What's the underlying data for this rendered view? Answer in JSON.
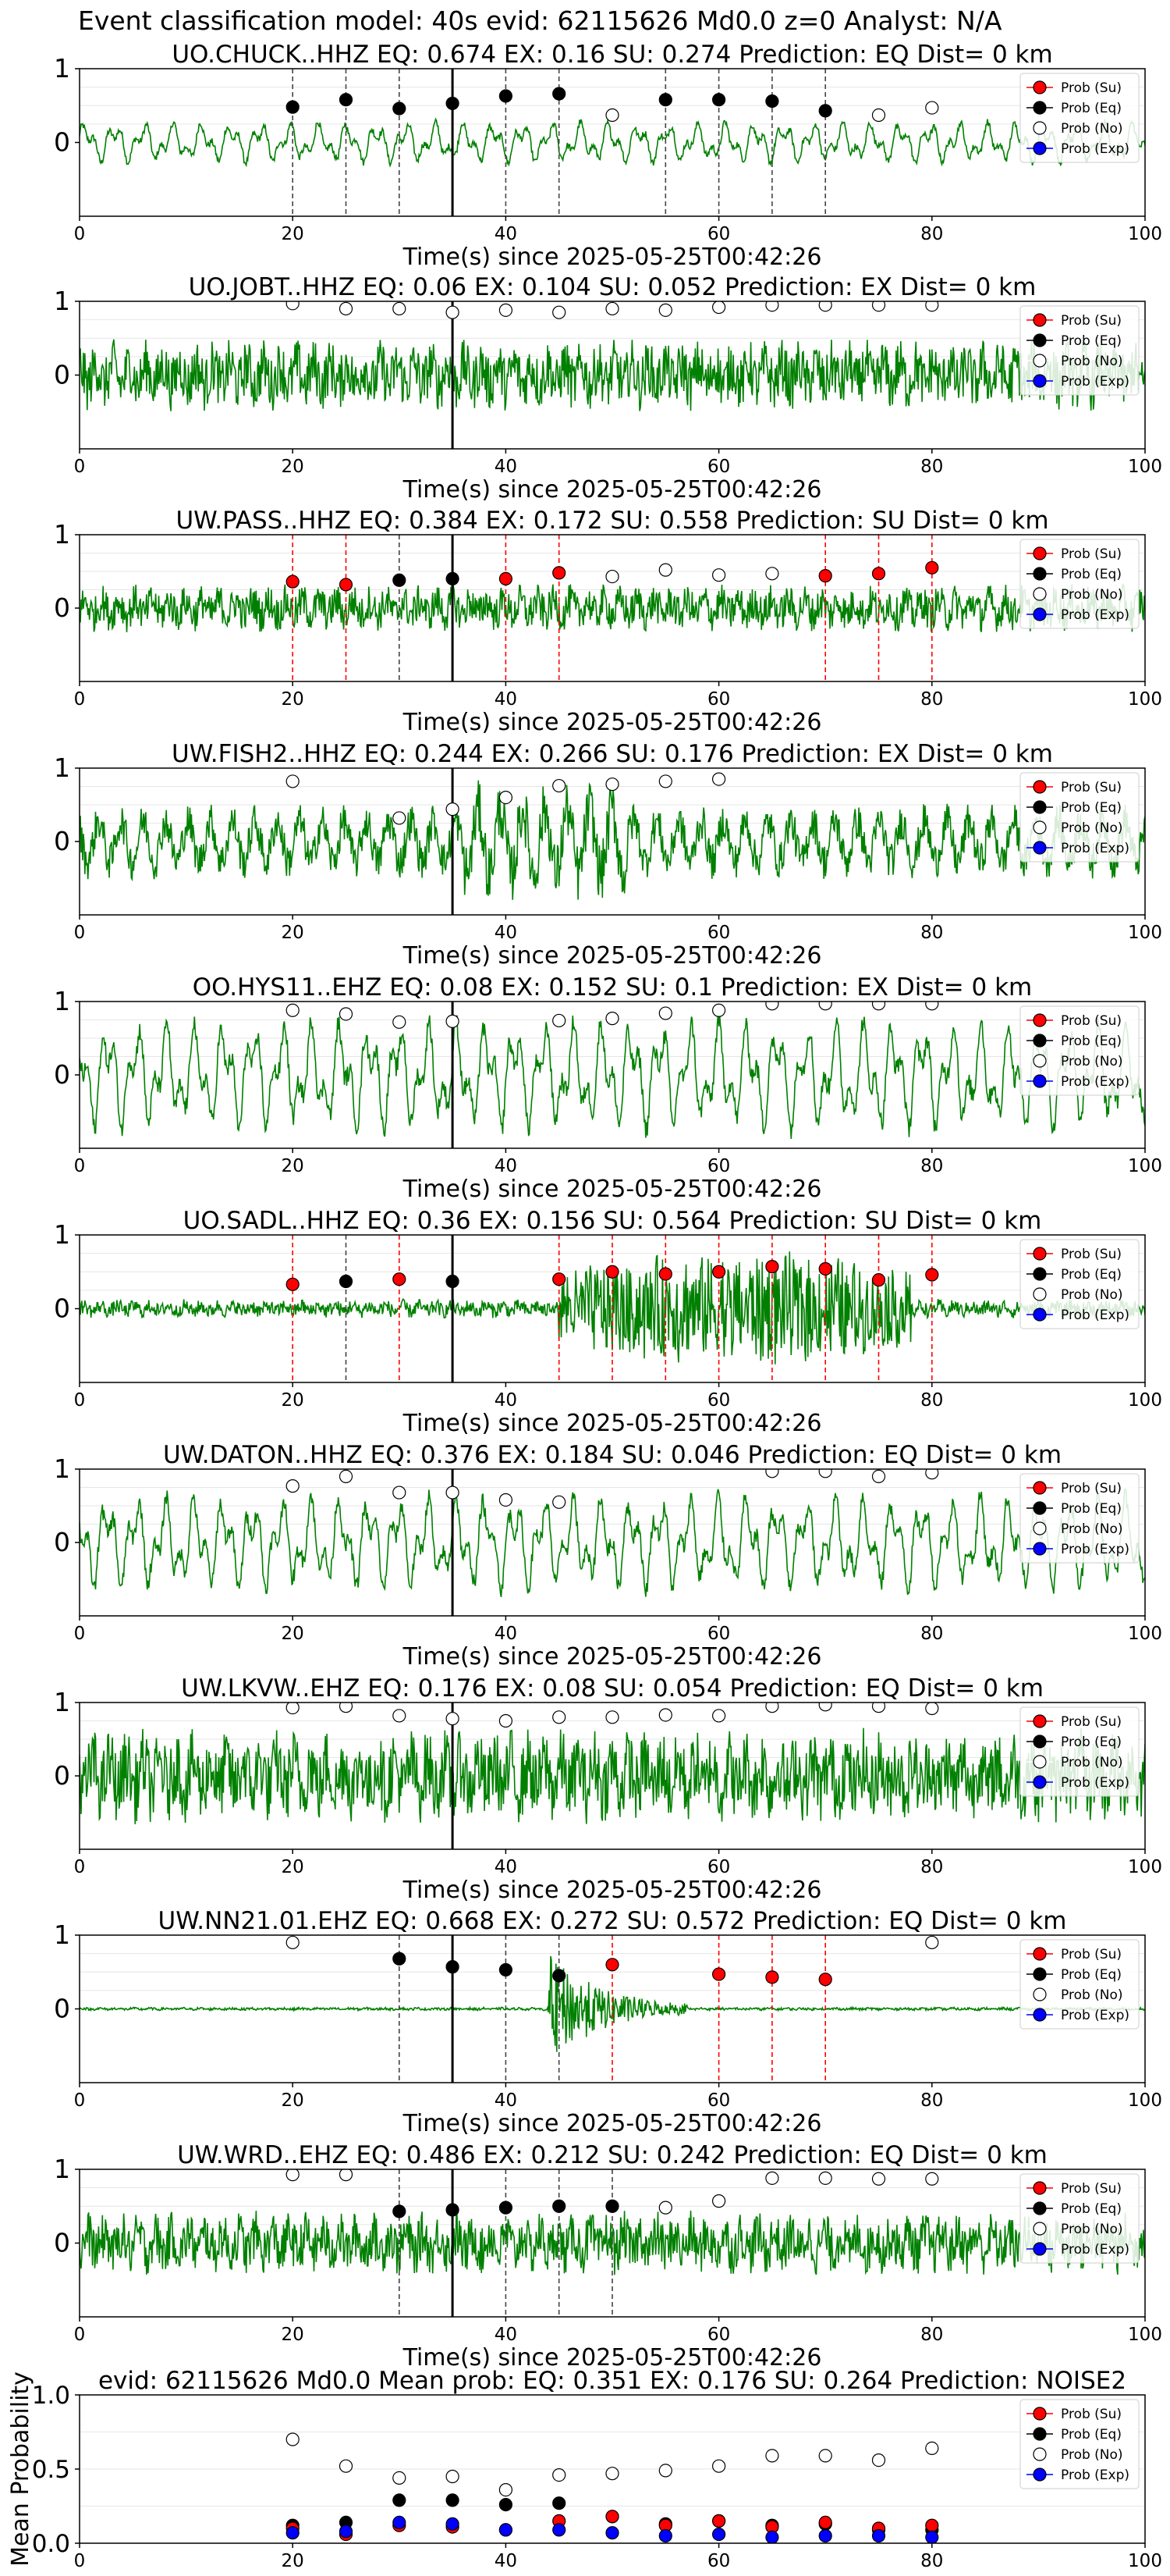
{
  "title": "Event classification model: 40s evid: 62115626 Md0.0 z=0 Analyst: N/A",
  "legend": [
    "Prob (Su)",
    "Prob (Eq)",
    "Prob (No)",
    "Prob (Exp)"
  ],
  "colors": {
    "su": "#ff0000",
    "eq": "#000000",
    "no": "#ffffff",
    "exp": "#0000ff",
    "trace": "#008000"
  },
  "chart_data": [
    {
      "type": "line",
      "title": "UO.CHUCK..HHZ   EQ: 0.674  EX: 0.16  SU: 0.274   Prediction: EQ    Dist= 0 km",
      "xlabel": "Time(s) since 2025-05-25T00:42:26",
      "xlim": [
        0,
        100
      ],
      "ylim": [
        -1,
        1
      ],
      "yticks": [
        0,
        1
      ],
      "xticks": [
        0,
        20,
        40,
        60,
        80,
        100
      ],
      "trace_style": "lowfreq",
      "trace_amp": 0.28,
      "marker_line": 35,
      "points": [
        [
          20,
          0.48,
          "eq"
        ],
        [
          25,
          0.58,
          "eq"
        ],
        [
          30,
          0.46,
          "eq"
        ],
        [
          35,
          0.53,
          "eq"
        ],
        [
          40,
          0.63,
          "eq"
        ],
        [
          45,
          0.66,
          "eq"
        ],
        [
          50,
          0.37,
          "no"
        ],
        [
          55,
          0.58,
          "eq"
        ],
        [
          60,
          0.58,
          "eq"
        ],
        [
          65,
          0.56,
          "eq"
        ],
        [
          70,
          0.43,
          "eq"
        ],
        [
          75,
          0.37,
          "no"
        ],
        [
          80,
          0.47,
          "no"
        ]
      ]
    },
    {
      "type": "line",
      "title": "UO.JOBT..HHZ   EQ: 0.06  EX: 0.104  SU: 0.052   Prediction: EX    Dist= 0 km",
      "xlabel": "Time(s) since 2025-05-25T00:42:26",
      "xlim": [
        0,
        100
      ],
      "ylim": [
        -1,
        1
      ],
      "yticks": [
        0,
        1
      ],
      "xticks": [
        0,
        20,
        40,
        60,
        80,
        100
      ],
      "trace_style": "noisy",
      "trace_amp": 0.45,
      "marker_line": 35,
      "points": [
        [
          20,
          0.97,
          "no"
        ],
        [
          25,
          0.9,
          "no"
        ],
        [
          30,
          0.9,
          "no"
        ],
        [
          35,
          0.85,
          "no"
        ],
        [
          40,
          0.88,
          "no"
        ],
        [
          45,
          0.85,
          "no"
        ],
        [
          50,
          0.9,
          "no"
        ],
        [
          55,
          0.88,
          "no"
        ],
        [
          60,
          0.92,
          "no"
        ],
        [
          65,
          0.95,
          "no"
        ],
        [
          70,
          0.95,
          "no"
        ],
        [
          75,
          0.95,
          "no"
        ],
        [
          80,
          0.95,
          "no"
        ]
      ]
    },
    {
      "type": "line",
      "title": "UW.PASS..HHZ   EQ: 0.384  EX: 0.172  SU: 0.558   Prediction: SU    Dist= 0 km",
      "xlabel": "Time(s) since 2025-05-25T00:42:26",
      "xlim": [
        0,
        100
      ],
      "ylim": [
        -1,
        1
      ],
      "yticks": [
        0,
        1
      ],
      "xticks": [
        0,
        20,
        40,
        60,
        80,
        100
      ],
      "trace_style": "noisy",
      "trace_amp": 0.3,
      "marker_line": 35,
      "points": [
        [
          20,
          0.36,
          "su"
        ],
        [
          25,
          0.32,
          "su"
        ],
        [
          30,
          0.38,
          "eq"
        ],
        [
          35,
          0.4,
          "eq"
        ],
        [
          40,
          0.4,
          "su"
        ],
        [
          45,
          0.48,
          "su"
        ],
        [
          50,
          0.43,
          "no"
        ],
        [
          55,
          0.52,
          "no"
        ],
        [
          60,
          0.45,
          "no"
        ],
        [
          65,
          0.47,
          "no"
        ],
        [
          70,
          0.44,
          "su"
        ],
        [
          75,
          0.47,
          "su"
        ],
        [
          80,
          0.55,
          "su"
        ]
      ]
    },
    {
      "type": "line",
      "title": "UW.FISH2..HHZ   EQ: 0.244  EX: 0.266  SU: 0.176   Prediction: EX    Dist= 0 km",
      "xlabel": "Time(s) since 2025-05-25T00:42:26",
      "xlim": [
        0,
        100
      ],
      "ylim": [
        -1,
        1
      ],
      "yticks": [
        0,
        1
      ],
      "xticks": [
        0,
        20,
        40,
        60,
        80,
        100
      ],
      "trace_style": "mixed",
      "trace_amp": 0.55,
      "marker_line": 35,
      "points": [
        [
          20,
          0.82,
          "no"
        ],
        [
          30,
          0.32,
          "no"
        ],
        [
          35,
          0.44,
          "no"
        ],
        [
          40,
          0.6,
          "no"
        ],
        [
          45,
          0.76,
          "no"
        ],
        [
          50,
          0.78,
          "no"
        ],
        [
          55,
          0.82,
          "no"
        ],
        [
          60,
          0.85,
          "no"
        ]
      ]
    },
    {
      "type": "line",
      "title": "OO.HYS11..EHZ   EQ: 0.08  EX: 0.152  SU: 0.1   Prediction: EX    Dist= 0 km",
      "xlabel": "Time(s) since 2025-05-25T00:42:26",
      "xlim": [
        0,
        100
      ],
      "ylim": [
        -1,
        1
      ],
      "yticks": [
        0,
        1
      ],
      "xticks": [
        0,
        20,
        40,
        60,
        80,
        100
      ],
      "trace_style": "lowfreq",
      "trace_amp": 0.75,
      "marker_line": 35,
      "points": [
        [
          20,
          0.88,
          "no"
        ],
        [
          25,
          0.83,
          "no"
        ],
        [
          30,
          0.72,
          "no"
        ],
        [
          35,
          0.73,
          "no"
        ],
        [
          45,
          0.74,
          "no"
        ],
        [
          50,
          0.77,
          "no"
        ],
        [
          55,
          0.84,
          "no"
        ],
        [
          60,
          0.88,
          "no"
        ],
        [
          65,
          0.97,
          "no"
        ],
        [
          70,
          0.97,
          "no"
        ],
        [
          75,
          0.97,
          "no"
        ],
        [
          80,
          0.97,
          "no"
        ]
      ]
    },
    {
      "type": "line",
      "title": "UO.SADL..HHZ   EQ: 0.36  EX: 0.156  SU: 0.564   Prediction: SU    Dist= 0 km",
      "xlabel": "Time(s) since 2025-05-25T00:42:26",
      "xlim": [
        0,
        100
      ],
      "ylim": [
        -1,
        1
      ],
      "yticks": [
        0,
        1
      ],
      "xticks": [
        0,
        20,
        40,
        60,
        80,
        100
      ],
      "trace_style": "burst",
      "trace_amp": 0.12,
      "burst": [
        45,
        78,
        0.7
      ],
      "marker_line": 35,
      "points": [
        [
          20,
          0.33,
          "su"
        ],
        [
          25,
          0.37,
          "eq"
        ],
        [
          30,
          0.4,
          "su"
        ],
        [
          35,
          0.37,
          "eq"
        ],
        [
          45,
          0.4,
          "su"
        ],
        [
          50,
          0.5,
          "su"
        ],
        [
          55,
          0.47,
          "su"
        ],
        [
          60,
          0.5,
          "su"
        ],
        [
          65,
          0.57,
          "su"
        ],
        [
          70,
          0.54,
          "su"
        ],
        [
          75,
          0.39,
          "su"
        ],
        [
          80,
          0.46,
          "su"
        ]
      ]
    },
    {
      "type": "line",
      "title": "UW.DATON..HHZ   EQ: 0.376  EX: 0.184  SU: 0.046   Prediction: EQ    Dist= 0 km",
      "xlabel": "Time(s) since 2025-05-25T00:42:26",
      "xlim": [
        0,
        100
      ],
      "ylim": [
        -1,
        1
      ],
      "yticks": [
        0,
        1
      ],
      "xticks": [
        0,
        20,
        40,
        60,
        80,
        100
      ],
      "trace_style": "lowfreq",
      "trace_amp": 0.65,
      "marker_line": 35,
      "points": [
        [
          20,
          0.77,
          "no"
        ],
        [
          25,
          0.9,
          "no"
        ],
        [
          30,
          0.68,
          "no"
        ],
        [
          35,
          0.68,
          "no"
        ],
        [
          40,
          0.58,
          "no"
        ],
        [
          45,
          0.55,
          "no"
        ],
        [
          65,
          0.97,
          "no"
        ],
        [
          70,
          0.97,
          "no"
        ],
        [
          75,
          0.9,
          "no"
        ],
        [
          80,
          0.95,
          "no"
        ]
      ]
    },
    {
      "type": "line",
      "title": "UW.LKVW..EHZ   EQ: 0.176  EX: 0.08  SU: 0.054   Prediction: EQ    Dist= 0 km",
      "xlabel": "Time(s) since 2025-05-25T00:42:26",
      "xlim": [
        0,
        100
      ],
      "ylim": [
        -1,
        1
      ],
      "yticks": [
        0,
        1
      ],
      "xticks": [
        0,
        20,
        40,
        60,
        80,
        100
      ],
      "trace_style": "noisy",
      "trace_amp": 0.6,
      "marker_line": 35,
      "points": [
        [
          20,
          0.93,
          "no"
        ],
        [
          25,
          0.95,
          "no"
        ],
        [
          30,
          0.82,
          "no"
        ],
        [
          35,
          0.78,
          "no"
        ],
        [
          40,
          0.75,
          "no"
        ],
        [
          45,
          0.8,
          "no"
        ],
        [
          50,
          0.8,
          "no"
        ],
        [
          55,
          0.83,
          "no"
        ],
        [
          60,
          0.82,
          "no"
        ],
        [
          65,
          0.95,
          "no"
        ],
        [
          70,
          0.97,
          "no"
        ],
        [
          75,
          0.95,
          "no"
        ],
        [
          80,
          0.92,
          "no"
        ]
      ]
    },
    {
      "type": "line",
      "title": "UW.NN21.01.EHZ   EQ: 0.668  EX: 0.272  SU: 0.572   Prediction: EQ    Dist= 0 km",
      "xlabel": "Time(s) since 2025-05-25T00:42:26",
      "xlim": [
        0,
        100
      ],
      "ylim": [
        -1,
        1
      ],
      "yticks": [
        0,
        1
      ],
      "xticks": [
        0,
        20,
        40,
        60,
        80,
        100
      ],
      "trace_style": "quake",
      "trace_amp": 0.02,
      "burst": [
        44,
        57,
        0.75
      ],
      "marker_line": 35,
      "points": [
        [
          20,
          0.9,
          "no"
        ],
        [
          30,
          0.68,
          "eq"
        ],
        [
          35,
          0.57,
          "eq"
        ],
        [
          40,
          0.53,
          "eq"
        ],
        [
          45,
          0.45,
          "eq"
        ],
        [
          50,
          0.6,
          "su"
        ],
        [
          60,
          0.47,
          "su"
        ],
        [
          65,
          0.43,
          "su"
        ],
        [
          70,
          0.4,
          "su"
        ],
        [
          80,
          0.9,
          "no"
        ]
      ]
    },
    {
      "type": "line",
      "title": "UW.WRD..EHZ   EQ: 0.486  EX: 0.212  SU: 0.242   Prediction: EQ    Dist= 0 km",
      "xlabel": "Time(s) since 2025-05-25T00:42:26",
      "xlim": [
        0,
        100
      ],
      "ylim": [
        -1,
        1
      ],
      "yticks": [
        0,
        1
      ],
      "xticks": [
        0,
        20,
        40,
        60,
        80,
        100
      ],
      "trace_style": "noisy",
      "trace_amp": 0.4,
      "marker_line": 35,
      "points": [
        [
          20,
          0.93,
          "no"
        ],
        [
          25,
          0.93,
          "no"
        ],
        [
          30,
          0.43,
          "eq"
        ],
        [
          35,
          0.45,
          "eq"
        ],
        [
          40,
          0.48,
          "eq"
        ],
        [
          45,
          0.5,
          "eq"
        ],
        [
          50,
          0.5,
          "eq"
        ],
        [
          55,
          0.48,
          "no"
        ],
        [
          60,
          0.57,
          "no"
        ],
        [
          65,
          0.88,
          "no"
        ],
        [
          70,
          0.88,
          "no"
        ],
        [
          75,
          0.87,
          "no"
        ],
        [
          80,
          0.87,
          "no"
        ]
      ]
    },
    {
      "type": "scatter",
      "title": "evid: 62115626  Md0.0   Mean prob:   EQ: 0.351  EX: 0.176  SU: 0.264   Prediction: NOISE2",
      "ylabel": "Mean Probability",
      "xlim": [
        0,
        100
      ],
      "ylim": [
        0,
        1
      ],
      "yticks": [
        0.0,
        0.5,
        1.0
      ],
      "xticks": [
        0,
        20,
        40,
        60,
        80,
        100
      ],
      "series": [
        {
          "name": "Prob (No)",
          "cls": "no",
          "x": [
            20,
            25,
            30,
            35,
            40,
            45,
            50,
            55,
            60,
            65,
            70,
            75,
            80
          ],
          "y": [
            0.7,
            0.52,
            0.44,
            0.45,
            0.36,
            0.46,
            0.47,
            0.49,
            0.52,
            0.59,
            0.59,
            0.56,
            0.64
          ]
        },
        {
          "name": "Prob (Eq)",
          "cls": "eq",
          "x": [
            20,
            25,
            30,
            35,
            40,
            45,
            50,
            55,
            60,
            65,
            70,
            75,
            80
          ],
          "y": [
            0.12,
            0.14,
            0.29,
            0.29,
            0.26,
            0.27,
            0.18,
            0.13,
            0.15,
            0.12,
            0.13,
            0.09,
            0.09
          ]
        },
        {
          "name": "Prob (Su)",
          "cls": "su",
          "x": [
            20,
            25,
            30,
            35,
            40,
            45,
            50,
            55,
            60,
            65,
            70,
            75,
            80
          ],
          "y": [
            0.1,
            0.06,
            0.12,
            0.11,
            0.09,
            0.15,
            0.18,
            0.12,
            0.15,
            0.11,
            0.14,
            0.1,
            0.12
          ]
        },
        {
          "name": "Prob (Exp)",
          "cls": "exp",
          "x": [
            20,
            25,
            30,
            35,
            40,
            45,
            50,
            55,
            60,
            65,
            70,
            75,
            80
          ],
          "y": [
            0.07,
            0.08,
            0.14,
            0.13,
            0.09,
            0.09,
            0.07,
            0.05,
            0.06,
            0.04,
            0.05,
            0.05,
            0.04
          ]
        }
      ]
    }
  ]
}
